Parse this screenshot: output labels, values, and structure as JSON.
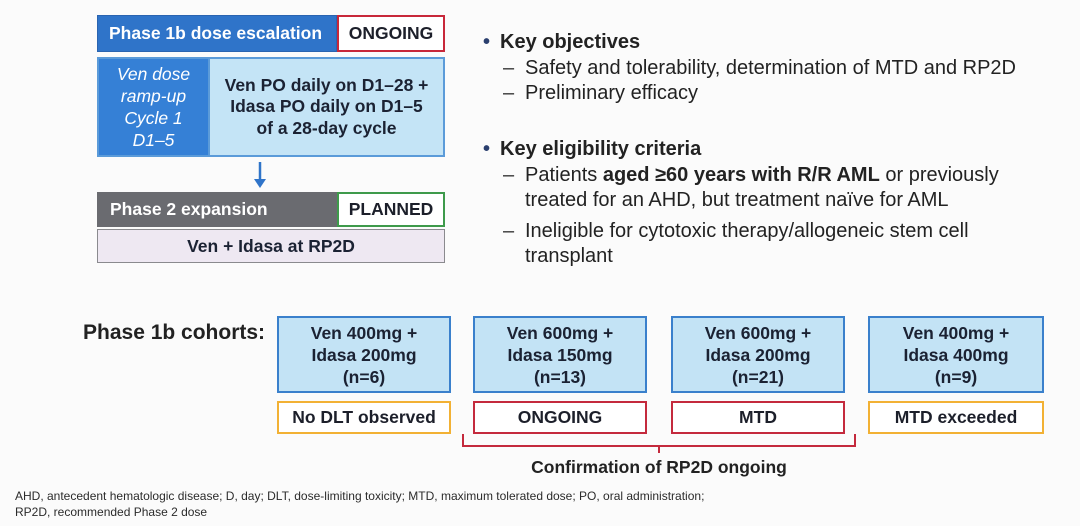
{
  "escalation": {
    "title": "Phase 1b dose escalation",
    "status": "ONGOING",
    "rampup_lines": [
      "Ven dose",
      "ramp-up",
      "Cycle 1",
      "D1–5"
    ],
    "regimen_lines": [
      "Ven PO daily on D1–28 +",
      "Idasa PO daily on D1–5",
      "of a 28-day cycle"
    ]
  },
  "expansion": {
    "title": "Phase 2 expansion",
    "status": "PLANNED",
    "regimen": "Ven + Idasa at RP2D"
  },
  "objectives": {
    "heading": "Key objectives",
    "items": [
      "Safety and tolerability, determination of MTD and RP2D",
      "Preliminary efficacy"
    ]
  },
  "eligibility": {
    "heading": "Key eligibility criteria",
    "item1": {
      "pre": "Patients ",
      "bold": "aged ≥60 years with R/R AML",
      "post": " or previously",
      "line2": "treated for an AHD, but treatment naïve for AML"
    },
    "item2": {
      "line1": "Ineligible for cytotoxic therapy/allogeneic stem cell",
      "line2": "transplant"
    }
  },
  "cohorts": {
    "label": "Phase 1b cohorts:",
    "items": [
      {
        "lines": [
          "Ven 400mg +",
          "Idasa 200mg",
          "(n=6)"
        ],
        "status": "No DLT observed",
        "status_color": "#f2b134"
      },
      {
        "lines": [
          "Ven 600mg +",
          "Idasa 150mg",
          "(n=13)"
        ],
        "status": "ONGOING",
        "status_color": "#c42a3d"
      },
      {
        "lines": [
          "Ven 600mg +",
          "Idasa 200mg",
          "(n=21)"
        ],
        "status": "MTD",
        "status_color": "#c42a3d"
      },
      {
        "lines": [
          "Ven 400mg +",
          "Idasa 400mg",
          "(n=9)"
        ],
        "status": "MTD exceeded",
        "status_color": "#f2b134"
      }
    ],
    "bracket_label": "Confirmation of RP2D ongoing"
  },
  "footnote": [
    "AHD, antecedent hematologic disease; D, day; DLT, dose-limiting toxicity; MTD, maximum tolerated dose; PO, oral administration;",
    "RP2D, recommended Phase 2 dose"
  ],
  "colors": {
    "escalation_header": "#2f74c9",
    "ongoing_border": "#c8283a",
    "rampup_fill": "#3580d6",
    "regimen_fill": "#c4e4f6",
    "arrow": "#2f74c9",
    "expansion_header": "#6a6b70",
    "planned_border": "#3e9a4b",
    "rp2d_fill": "#eee8f2",
    "cohort_fill": "#c3e3f5",
    "cohort_border": "#3a80cc",
    "bracket": "#c42a3d"
  }
}
